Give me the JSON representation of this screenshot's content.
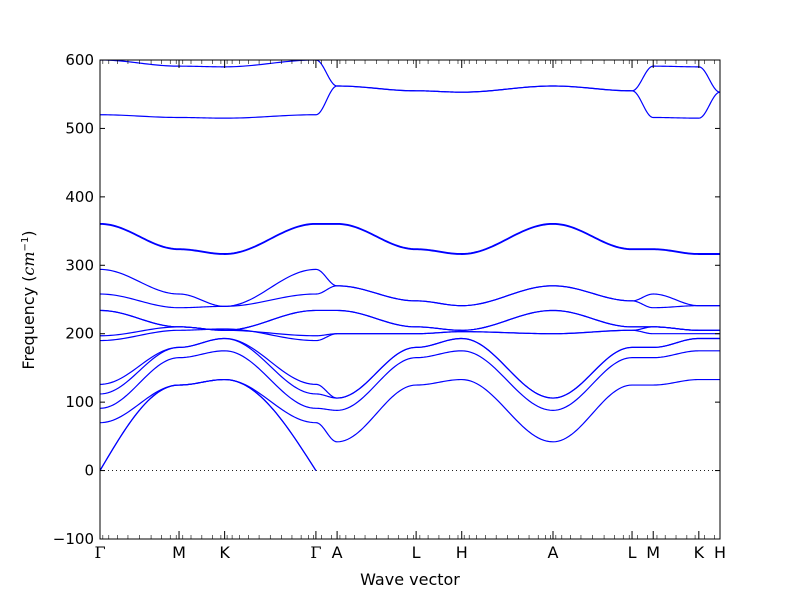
{
  "chart_data": {
    "type": "line",
    "title": "",
    "xlabel": "Wave vector",
    "ylabel": "Frequency ($cm^{-1}$)",
    "ylabel_text": "Frequency (",
    "ylabel_unit": "cm",
    "ylabel_exp": "−1",
    "ylabel_close": ")",
    "ylim": [
      -100,
      600
    ],
    "yticks": [
      -100,
      0,
      100,
      200,
      300,
      400,
      500,
      600
    ],
    "ytick_labels": [
      "−100",
      "0",
      "100",
      "200",
      "300",
      "400",
      "500",
      "600"
    ],
    "grid": false,
    "zero_line": "dotted",
    "band_color": "#0000ff",
    "high_symmetry_points": [
      {
        "label": "Γ",
        "x": 0.0
      },
      {
        "label": "M",
        "x": 1.0
      },
      {
        "label": "K",
        "x": 1.577
      },
      {
        "label": "Γ",
        "x": 2.732
      },
      {
        "label": "A",
        "x": 3.0
      },
      {
        "label": "L",
        "x": 4.0
      },
      {
        "label": "H",
        "x": 4.577
      },
      {
        "label": "A",
        "x": 5.732
      },
      {
        "label": "L",
        "x": 6.732
      },
      {
        "label": "M",
        "x": 7.0
      },
      {
        "label": "K",
        "x": 7.577
      },
      {
        "label": "H",
        "x": 7.845
      }
    ],
    "xlim": [
      0,
      7.845
    ],
    "segment_values": [
      [
        [
          0,
          0
        ],
        [
          70,
          28
        ],
        [
          90,
          34
        ],
        [
          110,
          48
        ],
        [
          126,
          43
        ]
      ],
      [
        [
          0,
          0
        ],
        [
          130,
          132
        ],
        [
          165,
          177
        ],
        [
          180,
          177
        ],
        [
          190,
          193
        ]
      ],
      [
        [
          126,
          34
        ],
        [
          180,
          175
        ],
        [
          205,
          200
        ],
        [
          207,
          200
        ],
        [
          208,
          205
        ]
      ],
      [
        [
          190,
          193
        ],
        [
          205,
          210
        ],
        [
          232,
          240
        ],
        [
          256,
          258
        ],
        [
          293,
          360
        ]
      ],
      [
        [
          360,
          512
        ],
        [
          325,
          575
        ],
        [
          318,
          600
        ],
        [
          360,
          600
        ],
        [
          600,
          600
        ]
      ]
    ],
    "series": [
      {
        "values": [
          [
            0,
            0
          ],
          [
            1,
            125
          ],
          [
            1.577,
            133
          ],
          [
            2.732,
            0
          ]
        ]
      },
      {
        "values": [
          [
            0,
            0
          ],
          [
            1,
            125
          ],
          [
            1.577,
            133
          ],
          [
            2.732,
            0
          ]
        ]
      },
      {
        "values": [
          [
            0,
            70
          ],
          [
            1,
            125
          ],
          [
            1.577,
            133
          ],
          [
            2.732,
            70
          ],
          [
            3,
            42
          ],
          [
            4,
            125
          ],
          [
            4.577,
            133
          ],
          [
            5.732,
            42
          ],
          [
            6.732,
            125
          ],
          [
            7,
            125
          ],
          [
            7.577,
            133
          ],
          [
            7.845,
            133
          ]
        ]
      },
      {
        "values": [
          [
            0,
            91
          ],
          [
            1,
            165
          ],
          [
            1.577,
            175
          ],
          [
            2.732,
            91
          ],
          [
            3,
            88
          ],
          [
            4,
            165
          ],
          [
            4.577,
            175
          ],
          [
            5.732,
            88
          ],
          [
            6.732,
            165
          ],
          [
            7,
            165
          ],
          [
            7.577,
            175
          ],
          [
            7.845,
            175
          ]
        ]
      },
      {
        "values": [
          [
            0,
            112
          ],
          [
            1,
            180
          ],
          [
            1.577,
            193
          ],
          [
            2.732,
            112
          ],
          [
            3,
            106
          ],
          [
            4,
            180
          ],
          [
            4.577,
            193
          ],
          [
            5.732,
            106
          ],
          [
            6.732,
            180
          ],
          [
            7,
            180
          ],
          [
            7.577,
            193
          ],
          [
            7.845,
            193
          ]
        ]
      },
      {
        "values": [
          [
            0,
            126
          ],
          [
            1,
            180
          ],
          [
            1.577,
            193
          ],
          [
            2.732,
            126
          ],
          [
            3,
            106
          ],
          [
            4,
            180
          ],
          [
            4.577,
            193
          ],
          [
            5.732,
            106
          ],
          [
            6.732,
            180
          ],
          [
            7,
            180
          ],
          [
            7.577,
            193
          ],
          [
            7.845,
            193
          ]
        ]
      },
      {
        "values": [
          [
            0,
            190
          ],
          [
            1,
            205
          ],
          [
            1.577,
            207
          ],
          [
            2.732,
            190
          ],
          [
            3,
            200
          ],
          [
            4,
            200
          ],
          [
            4.577,
            203
          ],
          [
            5.732,
            200
          ],
          [
            6.732,
            205
          ],
          [
            7,
            200
          ],
          [
            7.577,
            200
          ],
          [
            7.845,
            200
          ]
        ]
      },
      {
        "values": [
          [
            0,
            197
          ],
          [
            1,
            210
          ],
          [
            1.577,
            205
          ],
          [
            2.732,
            197
          ],
          [
            3,
            200
          ],
          [
            4,
            200
          ],
          [
            4.577,
            203
          ],
          [
            5.732,
            200
          ],
          [
            6.732,
            205
          ],
          [
            7,
            210
          ],
          [
            7.577,
            205
          ],
          [
            7.845,
            205
          ]
        ]
      },
      {
        "values": [
          [
            0,
            234
          ],
          [
            1,
            210
          ],
          [
            1.577,
            205
          ],
          [
            2.732,
            234
          ],
          [
            3,
            234
          ],
          [
            4,
            210
          ],
          [
            4.577,
            205
          ],
          [
            5.732,
            234
          ],
          [
            6.732,
            210
          ],
          [
            7,
            210
          ],
          [
            7.577,
            205
          ],
          [
            7.845,
            205
          ]
        ]
      },
      {
        "values": [
          [
            0,
            234
          ],
          [
            1,
            210
          ],
          [
            1.577,
            205
          ],
          [
            2.732,
            234
          ],
          [
            3,
            234
          ],
          [
            4,
            210
          ],
          [
            4.577,
            205
          ],
          [
            5.732,
            234
          ],
          [
            6.732,
            210
          ],
          [
            7,
            210
          ],
          [
            7.577,
            205
          ],
          [
            7.845,
            205
          ]
        ]
      },
      {
        "values": [
          [
            0,
            258
          ],
          [
            1,
            238
          ],
          [
            1.577,
            240
          ],
          [
            2.732,
            258
          ],
          [
            3,
            270
          ],
          [
            4,
            248
          ],
          [
            4.577,
            241
          ],
          [
            5.732,
            270
          ],
          [
            6.732,
            248
          ],
          [
            7,
            238
          ],
          [
            7.577,
            241
          ],
          [
            7.845,
            241
          ]
        ]
      },
      {
        "values": [
          [
            0,
            294
          ],
          [
            1,
            258
          ],
          [
            1.577,
            240
          ],
          [
            2.732,
            294
          ],
          [
            3,
            270
          ],
          [
            4,
            248
          ],
          [
            4.577,
            241
          ],
          [
            5.732,
            270
          ],
          [
            6.732,
            248
          ],
          [
            7,
            258
          ],
          [
            7.577,
            241
          ],
          [
            7.845,
            241
          ]
        ]
      },
      {
        "values": [
          [
            0,
            360
          ],
          [
            1,
            323
          ],
          [
            1.577,
            316
          ],
          [
            2.732,
            360
          ],
          [
            3,
            360
          ],
          [
            4,
            323
          ],
          [
            4.577,
            316
          ],
          [
            5.732,
            360
          ],
          [
            6.732,
            323
          ],
          [
            7,
            323
          ],
          [
            7.577,
            316
          ],
          [
            7.845,
            316
          ]
        ]
      },
      {
        "values": [
          [
            0,
            361
          ],
          [
            1,
            324
          ],
          [
            1.577,
            317
          ],
          [
            2.732,
            361
          ],
          [
            3,
            361
          ],
          [
            4,
            324
          ],
          [
            4.577,
            317
          ],
          [
            5.732,
            361
          ],
          [
            6.732,
            324
          ],
          [
            7,
            324
          ],
          [
            7.577,
            317
          ],
          [
            7.845,
            317
          ]
        ]
      },
      {
        "values": [
          [
            0,
            520
          ],
          [
            1,
            516
          ],
          [
            1.577,
            515
          ],
          [
            2.732,
            520
          ],
          [
            3,
            562
          ],
          [
            4,
            555
          ],
          [
            4.577,
            553
          ],
          [
            5.732,
            562
          ],
          [
            6.732,
            555
          ],
          [
            7,
            516
          ],
          [
            7.577,
            515
          ],
          [
            7.845,
            553
          ]
        ]
      },
      {
        "values": [
          [
            0,
            600
          ],
          [
            1,
            591
          ],
          [
            1.577,
            590
          ],
          [
            2.732,
            600
          ],
          [
            3,
            562
          ],
          [
            4,
            555
          ],
          [
            4.577,
            553
          ],
          [
            5.732,
            562
          ],
          [
            6.732,
            555
          ],
          [
            7,
            591
          ],
          [
            7.577,
            590
          ],
          [
            7.845,
            553
          ]
        ]
      }
    ]
  }
}
